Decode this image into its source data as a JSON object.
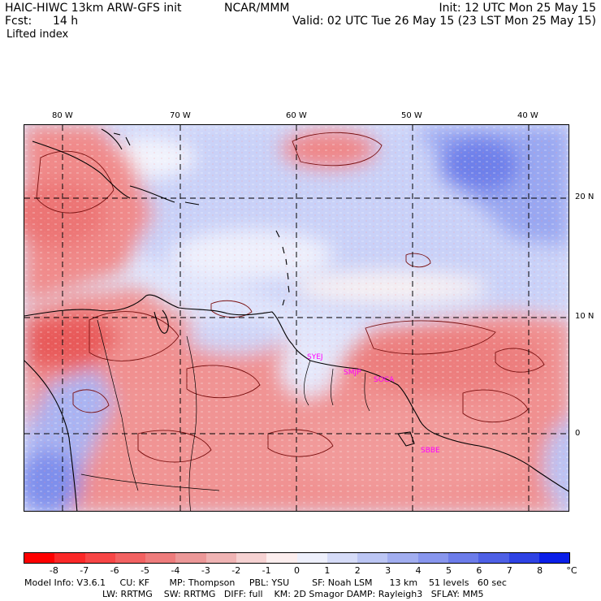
{
  "header": {
    "model": "HAIC-HIWC 13km ARW-GFS init",
    "org": "NCAR/MMM",
    "init": "Init: 12 UTC Mon 25 May 15",
    "fcst_label": "Fcst:",
    "fcst_value": "14 h",
    "valid": "Valid: 02 UTC Tue 26 May 15 (23 LST Mon 25 May 15)",
    "field": "Lifted index"
  },
  "map": {
    "lon_labels": [
      "80 W",
      "70 W",
      "60 W",
      "50 W",
      "40 W"
    ],
    "lat_labels": [
      "20 N",
      "10 N",
      "0"
    ],
    "stations": [
      "SYEJ",
      "SMJP",
      "SOCA",
      "SBBE"
    ]
  },
  "colorbar": {
    "ticks": [
      "-8",
      "-7",
      "-6",
      "-5",
      "-4",
      "-3",
      "-2",
      "-1",
      "0",
      "1",
      "2",
      "3",
      "4",
      "5",
      "6",
      "7",
      "8"
    ],
    "unit": "°C",
    "colors": [
      "#ff0000",
      "#fb2828",
      "#f74646",
      "#f26262",
      "#ee7c7c",
      "#ec9898",
      "#f0b4b4",
      "#f6d2d2",
      "#fceeee",
      "#eef0fc",
      "#d6dcf8",
      "#bcc6f4",
      "#a2aef0",
      "#8896ee",
      "#6c7cea",
      "#4e60e6",
      "#2e42e4",
      "#0a1ee8"
    ]
  },
  "footer": {
    "line1": "Model Info: V3.6.1     CU: KF       MP: Thompson     PBL: YSU        SF: Noah LSM      13 km    51 levels   60 sec",
    "line2": "LW: RRTMG    SW: RRTMG   DIFF: full    KM: 2D Smagor DAMP: Rayleigh3   SFLAY: MM5"
  }
}
